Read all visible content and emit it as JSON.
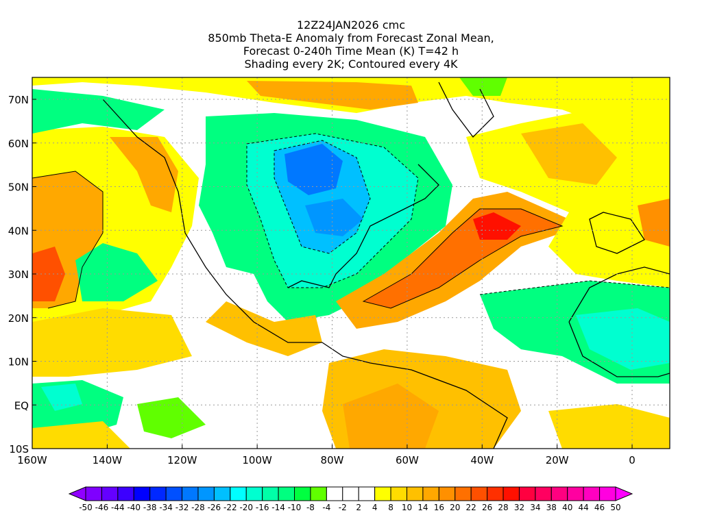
{
  "title": {
    "line1": "12Z24JAN2026 cmc",
    "line2": "850mb Theta-E Anomaly from Forecast Zonal Mean,",
    "line3": "Forecast 0-240h Time Mean (K) T=42 h",
    "line4": "Shading every 2K; Contoured every 4K"
  },
  "axes": {
    "lat_labels": [
      "70N",
      "60N",
      "50N",
      "40N",
      "30N",
      "20N",
      "10N",
      "EQ",
      "10S"
    ],
    "lat_values": [
      70,
      60,
      50,
      40,
      30,
      20,
      10,
      0,
      -10
    ],
    "lon_labels": [
      "160W",
      "140W",
      "120W",
      "100W",
      "80W",
      "60W",
      "40W",
      "20W",
      "0"
    ],
    "lon_values": [
      -160,
      -140,
      -120,
      -100,
      -80,
      -60,
      -40,
      -20,
      0
    ],
    "lat_range": [
      -10,
      75
    ],
    "lon_range": [
      -160,
      10
    ]
  },
  "colorbar": {
    "labels": [
      "-50",
      "-46",
      "-44",
      "-40",
      "-38",
      "-34",
      "-32",
      "-28",
      "-26",
      "-22",
      "-20",
      "-16",
      "-14",
      "-10",
      "-8",
      "-4",
      "-2",
      "2",
      "4",
      "8",
      "10",
      "14",
      "16",
      "20",
      "22",
      "26",
      "28",
      "32",
      "34",
      "38",
      "40",
      "44",
      "46",
      "50"
    ],
    "colors": [
      "#7f00ff",
      "#6400ff",
      "#3c00ff",
      "#0000ff",
      "#0028ff",
      "#0050ff",
      "#0078ff",
      "#0096ff",
      "#00c0ff",
      "#00ffff",
      "#00ffd0",
      "#00ffa8",
      "#00ff80",
      "#00ff40",
      "#60ff00",
      "#ffffff",
      "#ffffff",
      "#ffffff",
      "#ffff00",
      "#ffdc00",
      "#ffc000",
      "#ffa800",
      "#ff9000",
      "#ff7000",
      "#ff5000",
      "#ff3000",
      "#ff1000",
      "#ff0040",
      "#ff0060",
      "#ff0080",
      "#ff00a0",
      "#ff00c0",
      "#ff00e0"
    ],
    "under_color": "#9000ff",
    "over_color": "#ff00ff"
  }
}
